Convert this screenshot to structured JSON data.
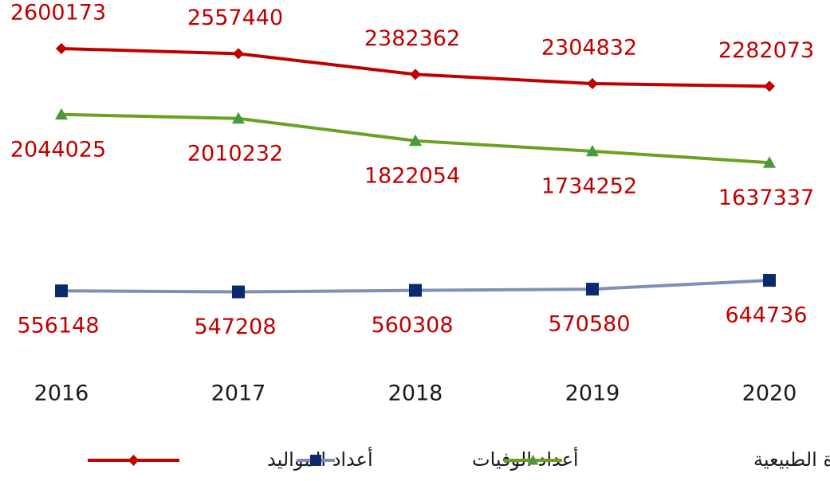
{
  "chart_data": {
    "type": "line",
    "categories": [
      "2016",
      "2017",
      "2018",
      "2019",
      "2020"
    ],
    "series": [
      {
        "name": "أعداد المواليد",
        "color": "#c00000",
        "marker": "diamond",
        "values": [
          2600173,
          2557440,
          2382362,
          2304832,
          2282073
        ]
      },
      {
        "name": "أعداد الوفيات",
        "color": "#7f8fb5",
        "marker_color": "#0b2a6b",
        "marker": "square",
        "values": [
          556148,
          547208,
          560308,
          570580,
          644736
        ]
      },
      {
        "name": "أعداد الزيادة الطبيعية",
        "color": "#6aa121",
        "marker_color": "#4a9a3a",
        "marker": "triangle",
        "values": [
          2044025,
          2010232,
          1822054,
          1734252,
          1637337
        ]
      }
    ],
    "label_color": "#c00000",
    "legend": "bottom"
  }
}
